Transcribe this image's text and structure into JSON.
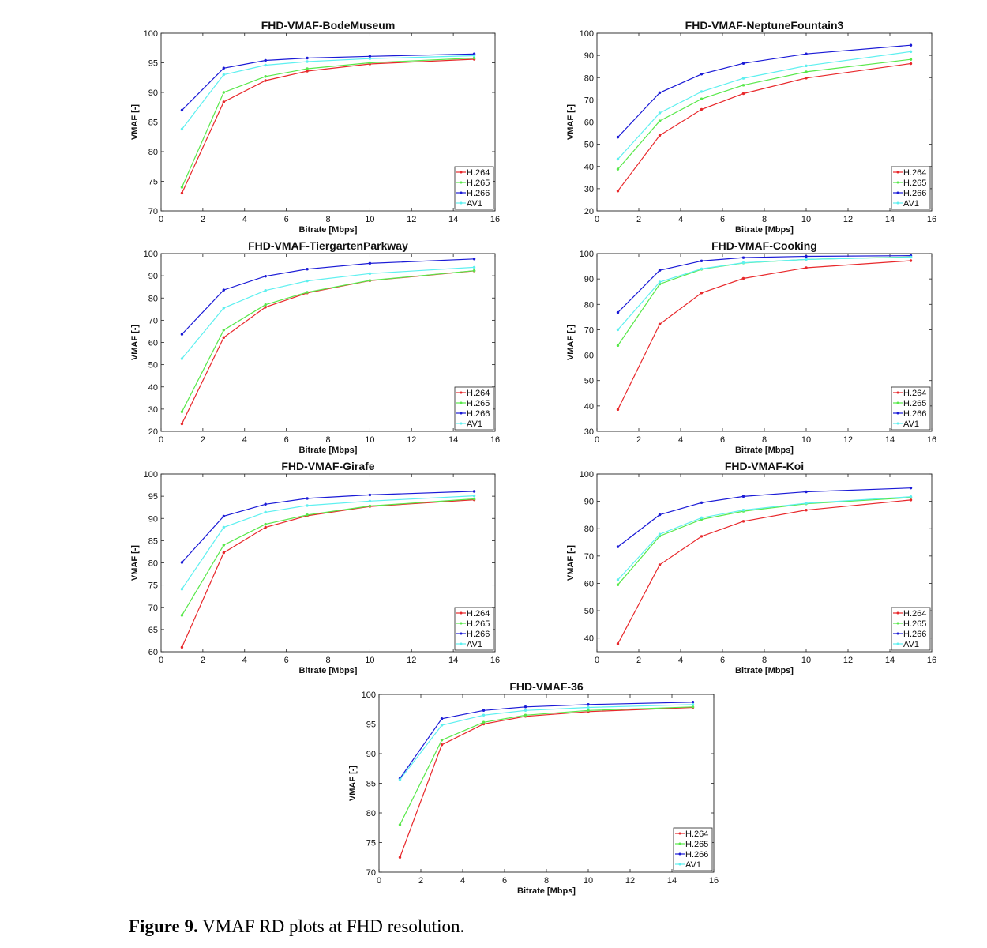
{
  "figure": {
    "caption_label": "Figure 9.",
    "caption_text": " VMAF RD plots at FHD resolution."
  },
  "chart_data": [
    {
      "type": "line",
      "title": "FHD-VMAF-BodeMuseum",
      "xlabel": "Bitrate [Mbps]",
      "ylabel": "VMAF [-]",
      "xlim": [
        0,
        16
      ],
      "ylim": [
        70,
        100
      ],
      "xticks": [
        0,
        2,
        4,
        6,
        8,
        10,
        12,
        14,
        16
      ],
      "yticks": [
        70,
        75,
        80,
        85,
        90,
        95,
        100
      ],
      "legend_position": "bottom-right",
      "x": [
        1,
        3,
        5,
        7,
        10,
        15
      ],
      "series": [
        {
          "name": "H.264",
          "color": "#e8282b",
          "values": [
            73.0,
            88.4,
            92.0,
            93.6,
            94.8,
            95.6
          ]
        },
        {
          "name": "H.265",
          "color": "#58e84a",
          "values": [
            74.0,
            90.0,
            92.7,
            94.0,
            95.0,
            95.8
          ]
        },
        {
          "name": "H.266",
          "color": "#1a1ad6",
          "values": [
            87.0,
            94.1,
            95.4,
            95.8,
            96.1,
            96.5
          ]
        },
        {
          "name": "AV1",
          "color": "#5ef0f0",
          "values": [
            83.8,
            93.0,
            94.6,
            95.2,
            95.7,
            96.2
          ]
        }
      ]
    },
    {
      "type": "line",
      "title": "FHD-VMAF-NeptuneFountain3",
      "xlabel": "Bitrate [Mbps]",
      "ylabel": "VMAF [-]",
      "xlim": [
        0,
        16
      ],
      "ylim": [
        20,
        100
      ],
      "xticks": [
        0,
        2,
        4,
        6,
        8,
        10,
        12,
        14,
        16
      ],
      "yticks": [
        20,
        30,
        40,
        50,
        60,
        70,
        80,
        90,
        100
      ],
      "legend_position": "bottom-right",
      "x": [
        1,
        3,
        5,
        7,
        10,
        15
      ],
      "series": [
        {
          "name": "H.264",
          "color": "#e8282b",
          "values": [
            29.0,
            54.0,
            65.7,
            72.8,
            79.8,
            86.3
          ]
        },
        {
          "name": "H.265",
          "color": "#58e84a",
          "values": [
            38.8,
            60.5,
            70.4,
            76.6,
            82.6,
            88.2
          ]
        },
        {
          "name": "H.266",
          "color": "#1a1ad6",
          "values": [
            53.2,
            73.2,
            81.6,
            86.4,
            90.7,
            94.6
          ]
        },
        {
          "name": "AV1",
          "color": "#5ef0f0",
          "values": [
            43.3,
            64.1,
            73.7,
            79.7,
            85.3,
            91.7
          ]
        }
      ]
    },
    {
      "type": "line",
      "title": "FHD-VMAF-TiergartenParkway",
      "xlabel": "Bitrate [Mbps]",
      "ylabel": "VMAF [-]",
      "xlim": [
        0,
        16
      ],
      "ylim": [
        20,
        100
      ],
      "xticks": [
        0,
        2,
        4,
        6,
        8,
        10,
        12,
        14,
        16
      ],
      "yticks": [
        20,
        30,
        40,
        50,
        60,
        70,
        80,
        90,
        100
      ],
      "legend_position": "bottom-right",
      "x": [
        1,
        3,
        5,
        7,
        10,
        15
      ],
      "series": [
        {
          "name": "H.264",
          "color": "#e8282b",
          "values": [
            23.4,
            62.2,
            75.9,
            82.3,
            87.8,
            92.2
          ]
        },
        {
          "name": "H.265",
          "color": "#58e84a",
          "values": [
            28.8,
            65.6,
            77.0,
            82.6,
            87.9,
            92.3
          ]
        },
        {
          "name": "H.266",
          "color": "#1a1ad6",
          "values": [
            63.7,
            83.6,
            89.8,
            93.0,
            95.6,
            97.6
          ]
        },
        {
          "name": "AV1",
          "color": "#5ef0f0",
          "values": [
            52.7,
            75.5,
            83.4,
            87.7,
            91.0,
            93.8
          ]
        }
      ]
    },
    {
      "type": "line",
      "title": "FHD-VMAF-Cooking",
      "xlabel": "Bitrate [Mbps]",
      "ylabel": "VMAF [-]",
      "xlim": [
        0,
        16
      ],
      "ylim": [
        30,
        100
      ],
      "xticks": [
        0,
        2,
        4,
        6,
        8,
        10,
        12,
        14,
        16
      ],
      "yticks": [
        30,
        40,
        50,
        60,
        70,
        80,
        90,
        100
      ],
      "legend_position": "bottom-right",
      "x": [
        1,
        3,
        5,
        7,
        10,
        15
      ],
      "series": [
        {
          "name": "H.264",
          "color": "#e8282b",
          "values": [
            38.6,
            72.2,
            84.5,
            90.2,
            94.4,
            97.2
          ]
        },
        {
          "name": "H.265",
          "color": "#58e84a",
          "values": [
            63.8,
            88.0,
            93.8,
            96.3,
            97.7,
            98.7
          ]
        },
        {
          "name": "H.266",
          "color": "#1a1ad6",
          "values": [
            76.8,
            93.4,
            97.1,
            98.4,
            98.9,
            99.2
          ]
        },
        {
          "name": "AV1",
          "color": "#5ef0f0",
          "values": [
            70.0,
            88.8,
            94.0,
            96.4,
            97.7,
            98.6
          ]
        }
      ]
    },
    {
      "type": "line",
      "title": "FHD-VMAF-Girafe",
      "xlabel": "Bitrate [Mbps]",
      "ylabel": "VMAF [-]",
      "xlim": [
        0,
        16
      ],
      "ylim": [
        60,
        100
      ],
      "xticks": [
        0,
        2,
        4,
        6,
        8,
        10,
        12,
        14,
        16
      ],
      "yticks": [
        60,
        65,
        70,
        75,
        80,
        85,
        90,
        95,
        100
      ],
      "legend_position": "bottom-right",
      "x": [
        1,
        3,
        5,
        7,
        10,
        15
      ],
      "series": [
        {
          "name": "H.264",
          "color": "#e8282b",
          "values": [
            61.0,
            82.3,
            88.0,
            90.6,
            92.7,
            94.2
          ]
        },
        {
          "name": "H.265",
          "color": "#58e84a",
          "values": [
            68.2,
            84.0,
            88.7,
            90.8,
            92.8,
            94.4
          ]
        },
        {
          "name": "H.266",
          "color": "#1a1ad6",
          "values": [
            80.1,
            90.5,
            93.2,
            94.5,
            95.3,
            96.1
          ]
        },
        {
          "name": "AV1",
          "color": "#5ef0f0",
          "values": [
            74.1,
            88.0,
            91.4,
            92.9,
            93.9,
            95.1
          ]
        }
      ]
    },
    {
      "type": "line",
      "title": "FHD-VMAF-Koi",
      "xlabel": "Bitrate [Mbps]",
      "ylabel": "VMAF [-]",
      "xlim": [
        0,
        16
      ],
      "ylim": [
        35,
        100
      ],
      "xticks": [
        0,
        2,
        4,
        6,
        8,
        10,
        12,
        14,
        16
      ],
      "yticks": [
        40,
        50,
        60,
        70,
        80,
        90,
        100
      ],
      "legend_position": "bottom-right",
      "x": [
        1,
        3,
        5,
        7,
        10,
        15
      ],
      "series": [
        {
          "name": "H.264",
          "color": "#e8282b",
          "values": [
            37.9,
            66.8,
            77.2,
            82.7,
            86.8,
            90.5
          ]
        },
        {
          "name": "H.265",
          "color": "#58e84a",
          "values": [
            59.5,
            77.3,
            83.4,
            86.4,
            89.1,
            91.4
          ]
        },
        {
          "name": "H.266",
          "color": "#1a1ad6",
          "values": [
            73.4,
            85.1,
            89.5,
            91.8,
            93.5,
            94.9
          ]
        },
        {
          "name": "AV1",
          "color": "#5ef0f0",
          "values": [
            61.3,
            78.0,
            84.0,
            86.8,
            89.3,
            91.7
          ]
        }
      ]
    },
    {
      "type": "line",
      "title": "FHD-VMAF-36",
      "xlabel": "Bitrate [Mbps]",
      "ylabel": "VMAF [-]",
      "xlim": [
        0,
        16
      ],
      "ylim": [
        70,
        100
      ],
      "xticks": [
        0,
        2,
        4,
        6,
        8,
        10,
        12,
        14,
        16
      ],
      "yticks": [
        70,
        75,
        80,
        85,
        90,
        95,
        100
      ],
      "legend_position": "bottom-right",
      "x": [
        1,
        3,
        5,
        7,
        10,
        15
      ],
      "series": [
        {
          "name": "H.264",
          "color": "#e8282b",
          "values": [
            72.5,
            91.5,
            95.0,
            96.3,
            97.1,
            97.8
          ]
        },
        {
          "name": "H.265",
          "color": "#58e84a",
          "values": [
            78.0,
            92.3,
            95.3,
            96.5,
            97.3,
            97.9
          ]
        },
        {
          "name": "H.266",
          "color": "#1a1ad6",
          "values": [
            85.8,
            95.9,
            97.3,
            97.9,
            98.3,
            98.7
          ]
        },
        {
          "name": "AV1",
          "color": "#5ef0f0",
          "values": [
            85.6,
            94.8,
            96.5,
            97.3,
            97.8,
            98.3
          ]
        }
      ]
    }
  ]
}
